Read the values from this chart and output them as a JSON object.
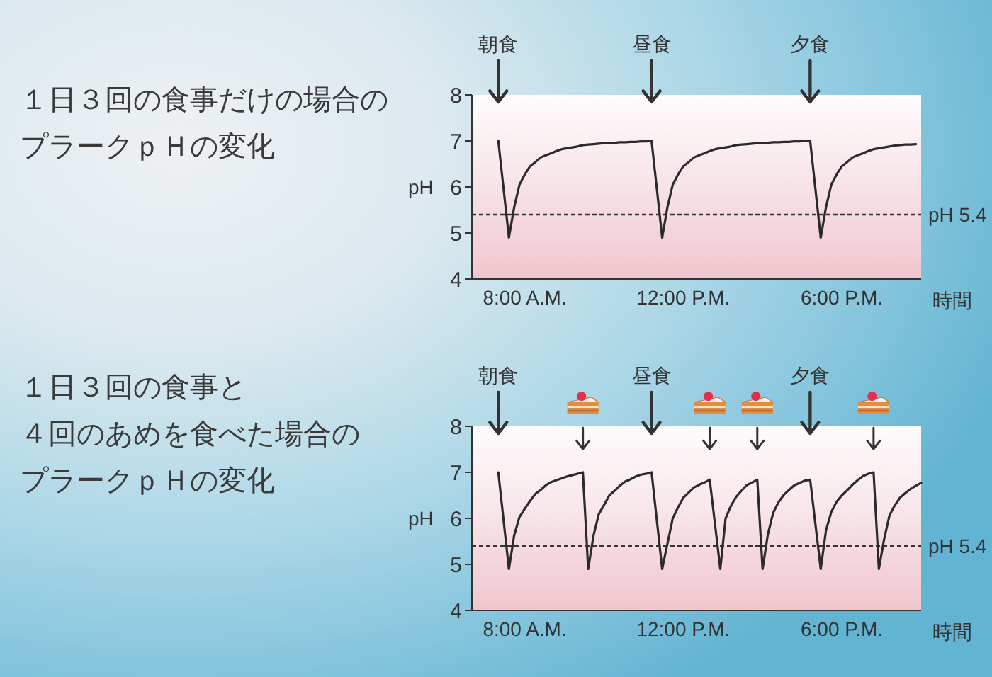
{
  "chart_data": [
    {
      "type": "line",
      "title": "１日３回の食事だけの場合のプラークｐＨの変化",
      "xlabel": "時間",
      "ylabel": "pH",
      "color": "#2b2b2b",
      "categories": [
        null,
        null,
        null,
        null,
        null,
        null,
        null,
        null,
        null,
        null,
        "8:00 A.M.",
        null,
        null,
        null,
        null,
        null,
        null,
        null,
        null,
        null,
        null,
        null,
        null,
        null,
        null,
        null,
        null,
        null,
        null,
        null,
        null,
        null,
        null,
        null,
        null,
        null,
        null,
        null,
        null,
        null,
        "12:00 P.M.",
        null,
        null,
        null,
        null,
        null,
        null,
        null,
        null,
        null,
        null,
        null,
        null,
        null,
        null,
        null,
        null,
        null,
        null,
        null,
        null,
        null,
        null,
        null,
        null,
        null,
        null,
        null,
        null,
        null,
        "6:00 P.M.",
        null,
        null,
        null,
        null,
        null,
        null,
        null,
        null,
        null,
        null,
        null,
        null,
        null,
        null,
        null
      ],
      "values": [
        null,
        null,
        null,
        null,
        null,
        7.0,
        5.95,
        4.9,
        5.56,
        6.05,
        6.27,
        6.45,
        6.54,
        6.64,
        6.69,
        6.73,
        6.78,
        6.82,
        6.84,
        6.86,
        6.88,
        6.91,
        6.92,
        6.93,
        6.94,
        6.95,
        6.96,
        6.96,
        6.97,
        6.97,
        6.98,
        6.98,
        6.99,
        6.99,
        7.0,
        5.95,
        4.9,
        5.56,
        6.05,
        6.27,
        6.45,
        6.54,
        6.64,
        6.69,
        6.73,
        6.78,
        6.82,
        6.84,
        6.86,
        6.88,
        6.91,
        6.92,
        6.93,
        6.94,
        6.95,
        6.96,
        6.96,
        6.97,
        6.97,
        6.98,
        6.98,
        6.99,
        6.99,
        7.0,
        7.0,
        5.95,
        4.9,
        5.56,
        6.05,
        6.27,
        6.45,
        6.54,
        6.64,
        6.69,
        6.73,
        6.78,
        6.82,
        6.84,
        6.86,
        6.88,
        6.9,
        6.91,
        6.92,
        6.92,
        6.93,
        null
      ],
      "ylim": [
        4,
        8
      ],
      "yticks": [
        4,
        5,
        6,
        7,
        8
      ],
      "ref_lines": [
        {
          "axis": "y",
          "value": 5.4,
          "label": "pH 5.4",
          "line_style": "dashed",
          "color": "#333333"
        }
      ],
      "annotations": [
        "朝食",
        "昼食",
        "夕食"
      ]
    },
    {
      "type": "line",
      "title": "１日３回の食事と４回のあめを食べた場合のプラークｐＨの変化",
      "xlabel": "時間",
      "ylabel": "pH",
      "color": "#2b2b2b",
      "categories": [
        null,
        null,
        null,
        null,
        null,
        null,
        null,
        null,
        null,
        null,
        "8:00 A.M.",
        null,
        null,
        null,
        null,
        null,
        null,
        null,
        null,
        null,
        null,
        null,
        null,
        null,
        null,
        null,
        null,
        null,
        null,
        null,
        null,
        null,
        null,
        null,
        null,
        null,
        null,
        null,
        null,
        null,
        "12:00 P.M.",
        null,
        null,
        null,
        null,
        null,
        null,
        null,
        null,
        null,
        null,
        null,
        null,
        null,
        null,
        null,
        null,
        null,
        null,
        null,
        null,
        null,
        null,
        null,
        null,
        null,
        null,
        null,
        null,
        null,
        "6:00 P.M.",
        null,
        null,
        null,
        null,
        null,
        null,
        null,
        null,
        null,
        null,
        null,
        null,
        null,
        null,
        null
      ],
      "values": [
        null,
        null,
        null,
        null,
        null,
        7.0,
        5.95,
        4.9,
        5.63,
        6.03,
        6.21,
        6.38,
        6.53,
        6.62,
        6.72,
        6.79,
        6.83,
        6.87,
        6.91,
        6.94,
        6.97,
        7.0,
        4.9,
        5.62,
        6.09,
        6.29,
        6.5,
        6.6,
        6.71,
        6.8,
        6.85,
        6.91,
        6.95,
        6.97,
        7.0,
        5.95,
        4.9,
        5.45,
        6.0,
        6.24,
        6.45,
        6.56,
        6.67,
        6.73,
        6.78,
        6.84,
        5.87,
        4.9,
        6.0,
        6.27,
        6.47,
        6.6,
        6.72,
        6.78,
        6.84,
        4.9,
        5.65,
        6.12,
        6.35,
        6.51,
        6.62,
        6.72,
        6.77,
        6.82,
        6.84,
        5.87,
        4.9,
        5.74,
        6.14,
        6.36,
        6.5,
        6.61,
        6.73,
        6.83,
        6.92,
        6.97,
        7.0,
        4.9,
        5.55,
        6.06,
        6.28,
        6.45,
        6.55,
        6.64,
        6.71,
        6.77
      ],
      "ylim": [
        4,
        8
      ],
      "yticks": [
        4,
        5,
        6,
        7,
        8
      ],
      "ref_lines": [
        {
          "axis": "y",
          "value": 5.4,
          "label": "pH 5.4",
          "line_style": "dashed",
          "color": "#333333"
        }
      ],
      "annotations": [
        "朝食",
        "昼食",
        "夕食"
      ]
    }
  ]
}
